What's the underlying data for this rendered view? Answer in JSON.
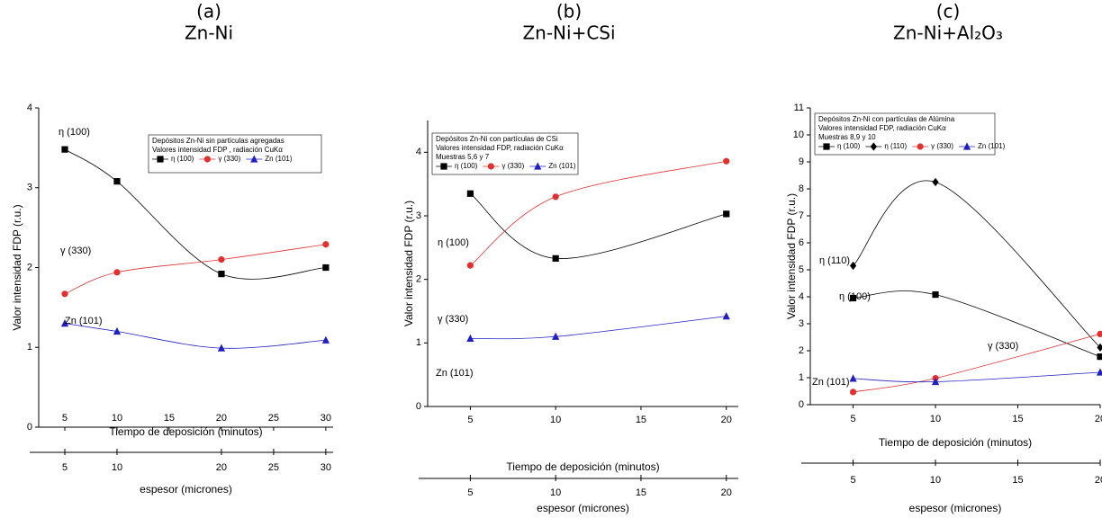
{
  "chart_data": [
    {
      "type": "line",
      "panel": "(a)",
      "title": "Zn-Ni",
      "xlabel": "Tiempo de deposición (minutos)",
      "ylabel": "Valor intensidad FDP (r.u.)",
      "x2label": "espesor (micrones)",
      "legend_lines": [
        "Depósitos Zn-Ni sin partículas agregadas",
        "Valores intensidad FDP , radiación CuKα"
      ],
      "x": [
        5,
        10,
        20,
        30
      ],
      "series": [
        {
          "name": "η (100)",
          "color": "#000000",
          "marker": "square",
          "values": [
            3.48,
            3.08,
            1.92,
            2.0
          ]
        },
        {
          "name": "γ (330)",
          "color": "#e03030",
          "marker": "circle",
          "values": [
            1.67,
            1.94,
            2.1,
            2.29
          ]
        },
        {
          "name": "Zn (101)",
          "color": "#2020c0",
          "marker": "triangle",
          "values": [
            1.3,
            1.2,
            0.99,
            1.09
          ]
        }
      ],
      "annotations": [
        "η (100)",
        "γ (330)",
        "Zn (101)"
      ],
      "xlim": [
        2.5,
        30.7
      ],
      "xticks": [
        5,
        10,
        15,
        20,
        25,
        30
      ],
      "x2lim": [
        2.5,
        30.7
      ],
      "x2ticks": [
        5,
        10,
        20,
        25,
        30
      ],
      "ylim": [
        0,
        4
      ],
      "yticks": [
        0,
        1,
        2,
        3,
        4
      ]
    },
    {
      "type": "line",
      "panel": "(b)",
      "title": "Zn-Ni+CSi",
      "xlabel": "Tiempo de deposición  (minutos)",
      "ylabel": "Valor intensidad FDP (r.u.)",
      "x2label": "espesor (micrones)",
      "legend_lines": [
        "Depósitos Zn-Ni con partículas de CSi",
        "Valores intensidad FDP, radiación CuKα",
        "Muestras 5,6 y 7"
      ],
      "x": [
        5,
        10,
        20
      ],
      "series": [
        {
          "name": "η (100)",
          "color": "#000000",
          "marker": "square",
          "values": [
            3.35,
            2.33,
            3.03
          ]
        },
        {
          "name": "γ (330)",
          "color": "#e03030",
          "marker": "circle",
          "values": [
            2.22,
            3.3,
            3.86
          ]
        },
        {
          "name": "Zn (101)",
          "color": "#2020c0",
          "marker": "triangle",
          "values": [
            1.07,
            1.1,
            1.42
          ]
        }
      ],
      "annotations": [
        "η (100)",
        "γ (330)",
        "Zn (101)"
      ],
      "xlim": [
        2.5,
        20.7
      ],
      "xticks": [
        5,
        10,
        15,
        20
      ],
      "x2lim": [
        2.5,
        20.7
      ],
      "x2ticks": [
        5,
        10,
        15,
        20
      ],
      "ylim": [
        0,
        4.5
      ],
      "yticks": [
        0,
        1,
        2,
        3,
        4
      ]
    },
    {
      "type": "line",
      "panel": "(c)",
      "title": "Zn-Ni+Al₂O₃",
      "xlabel": "Tiempo de deposición (minutos)",
      "ylabel": "Valor intensidad FDP (r.u.)",
      "x2label": "espesor (micrones)",
      "legend_lines": [
        "Depósitos Zn-Ni con partículas de Alúmina",
        "Valores intensidad FDP, radiación CuKα",
        "Muestras 8,9 y 10"
      ],
      "x": [
        5,
        10,
        20
      ],
      "series": [
        {
          "name": "η (100)",
          "color": "#000000",
          "marker": "square",
          "values": [
            3.95,
            4.08,
            1.78
          ]
        },
        {
          "name": "η (110)",
          "color": "#000000",
          "marker": "diamond",
          "values": [
            5.15,
            8.25,
            2.12
          ]
        },
        {
          "name": "γ (330)",
          "color": "#e03030",
          "marker": "circle",
          "values": [
            0.47,
            0.98,
            2.62
          ]
        },
        {
          "name": "Zn (101)",
          "color": "#2020c0",
          "marker": "triangle",
          "values": [
            0.97,
            0.85,
            1.2
          ]
        }
      ],
      "annotations": [
        "η (110)",
        "η (100)",
        "Zn (101)",
        "γ (330)"
      ],
      "xlim": [
        2.4,
        20
      ],
      "xticks": [
        5,
        10,
        15,
        20
      ],
      "x2lim": [
        2.4,
        20
      ],
      "x2ticks": [
        5,
        10,
        15,
        20
      ],
      "ylim": [
        0,
        11
      ],
      "yticks": [
        0,
        1,
        2,
        3,
        4,
        5,
        6,
        7,
        8,
        9,
        10,
        11
      ]
    }
  ]
}
